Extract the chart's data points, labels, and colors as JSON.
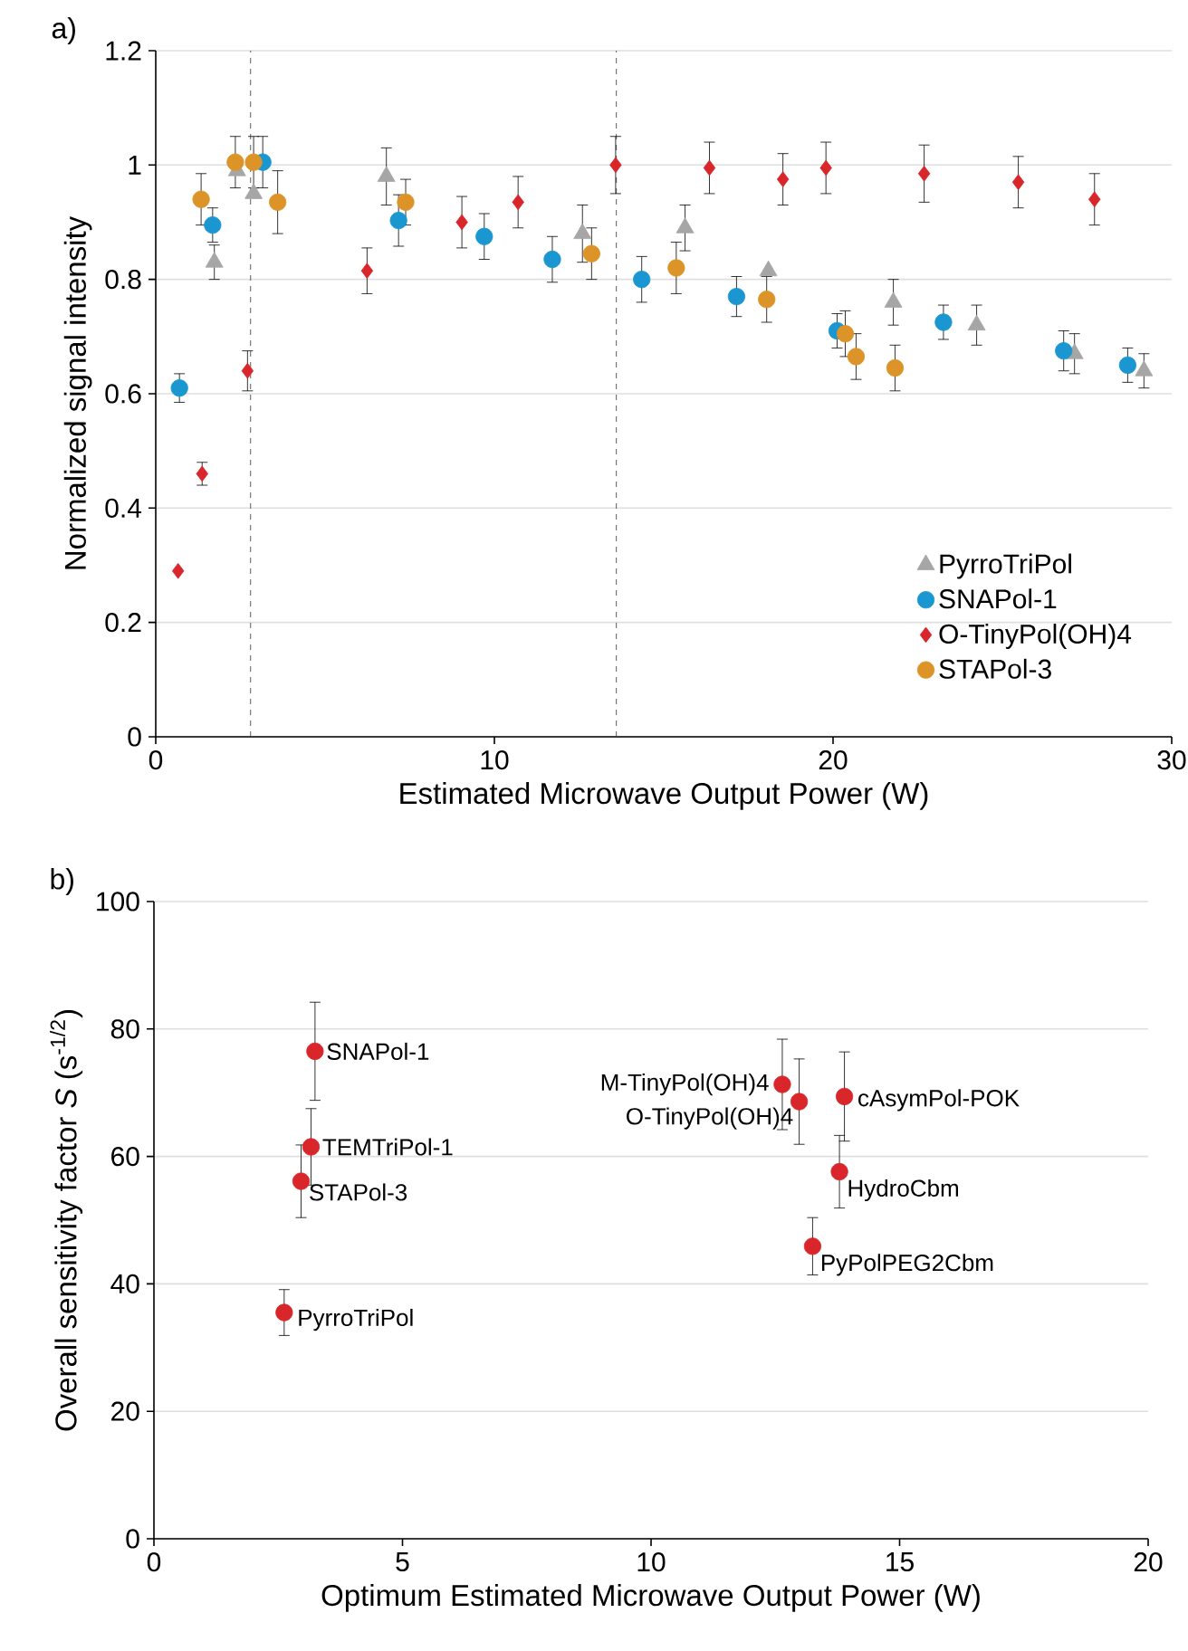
{
  "chart_data": [
    {
      "type": "scatter",
      "title": "a)",
      "xlabel": "Estimated Microwave Output Power (W)",
      "ylabel": "Normalized signal intensity",
      "xlim": [
        0,
        30
      ],
      "xticks": [
        0,
        10,
        20,
        30
      ],
      "ylim": [
        0,
        1.2
      ],
      "yticks": [
        0,
        0.2,
        0.4,
        0.6,
        0.8,
        1,
        1.2
      ],
      "grid": "y",
      "legend": "bottom right",
      "ref_lines": [
        {
          "axis": "x",
          "value": 2.8,
          "line_style": "dashed"
        },
        {
          "axis": "x",
          "value": 13.6,
          "line_style": "dashed"
        }
      ],
      "series": [
        {
          "name": "PyrroTriPol",
          "color": "#a6a6a6",
          "marker": "triangle",
          "x": [
            1.73,
            2.4,
            2.89,
            6.81,
            12.6,
            15.63,
            18.09,
            21.78,
            24.24,
            27.13,
            29.18
          ],
          "values": [
            0.83,
            0.99,
            0.95,
            0.98,
            0.88,
            0.89,
            0.815,
            0.76,
            0.72,
            0.67,
            0.64
          ],
          "errors": [
            0.03,
            null,
            null,
            0.05,
            0.05,
            0.04,
            null,
            0.04,
            0.035,
            0.035,
            0.03
          ]
        },
        {
          "name": "SNAPol-1",
          "color": "#1a96d0",
          "marker": "circle",
          "x": [
            0.7,
            1.68,
            3.16,
            7.17,
            9.7,
            11.71,
            14.35,
            17.15,
            20.12,
            23.26,
            26.81,
            28.7
          ],
          "values": [
            0.61,
            0.895,
            1.005,
            0.903,
            0.875,
            0.835,
            0.8,
            0.77,
            0.71,
            0.725,
            0.675,
            0.65
          ],
          "errors": [
            0.025,
            0.03,
            0.045,
            0.045,
            0.04,
            0.04,
            0.04,
            0.035,
            0.03,
            0.03,
            0.035,
            0.03
          ]
        },
        {
          "name": "O-TinyPol(OH)4",
          "color": "#d9262a",
          "marker": "diamond",
          "x": [
            0.66,
            1.37,
            2.71,
            6.24,
            9.04,
            10.7,
            13.58,
            16.35,
            18.52,
            19.79,
            22.69,
            25.47,
            27.72
          ],
          "values": [
            0.29,
            0.46,
            0.64,
            0.815,
            0.9,
            0.935,
            1,
            0.995,
            0.975,
            0.995,
            0.985,
            0.97,
            0.94
          ],
          "errors": [
            null,
            0.02,
            0.035,
            0.04,
            0.045,
            0.045,
            0.05,
            0.045,
            0.045,
            0.045,
            0.05,
            0.045,
            0.045
          ]
        },
        {
          "name": "STAPol-3",
          "color": "#dc9327",
          "marker": "circle",
          "x": [
            1.34,
            2.35,
            2.89,
            3.6,
            7.38,
            12.87,
            15.37,
            18.04,
            20.36,
            20.68,
            21.83
          ],
          "values": [
            0.94,
            1.005,
            1.005,
            0.935,
            0.935,
            0.845,
            0.82,
            0.765,
            0.705,
            0.665,
            0.645
          ],
          "errors": [
            0.045,
            0.045,
            0.045,
            0.055,
            0.04,
            0.045,
            0.045,
            0.04,
            0.04,
            0.04,
            0.04
          ]
        }
      ]
    },
    {
      "type": "scatter",
      "title": "b)",
      "xlabel": "Optimum Estimated Microwave Output Power (W)",
      "ylabel": "Overall sensitivity factor *S* (s$^{-1/2}$)",
      "xlim": [
        0,
        20
      ],
      "xticks": [
        0,
        5,
        10,
        15,
        20
      ],
      "ylim": [
        0,
        100
      ],
      "yticks": [
        0,
        20,
        40,
        60,
        80,
        100
      ],
      "grid": "y",
      "series": [
        {
          "color": "#d9262a",
          "marker": "circle",
          "x": [
            3.24,
            3.16,
            2.96,
            2.62,
            12.64,
            12.98,
            13.89,
            13.79,
            13.25
          ],
          "values": [
            76.5,
            61.5,
            56.1,
            35.5,
            71.3,
            68.6,
            69.4,
            57.6,
            45.9
          ],
          "errors": [
            7.7,
            6,
            5.7,
            3.6,
            7.1,
            6.7,
            7,
            5.7,
            4.5
          ]
        }
      ],
      "annotations": [
        {
          "text": "SNAPol-1",
          "x": 3.24,
          "y": 76.5
        },
        {
          "text": "TEMTriPol-1",
          "x": 3.16,
          "y": 61.5
        },
        {
          "text": "STAPol-3",
          "x": 2.96,
          "y": 56.1
        },
        {
          "text": "PyrroTriPol",
          "x": 2.62,
          "y": 35.5
        },
        {
          "text": "M-TinyPol(OH)4",
          "x": 12.64,
          "y": 71.3
        },
        {
          "text": "O-TinyPol(OH)4",
          "x": 12.98,
          "y": 68.6
        },
        {
          "text": "cAsymPol-POK",
          "x": 13.89,
          "y": 69.4
        },
        {
          "text": "HydroCbm",
          "x": 13.79,
          "y": 57.6
        },
        {
          "text": "PyPolPEG2Cbm",
          "x": 13.25,
          "y": 45.9
        }
      ]
    }
  ]
}
